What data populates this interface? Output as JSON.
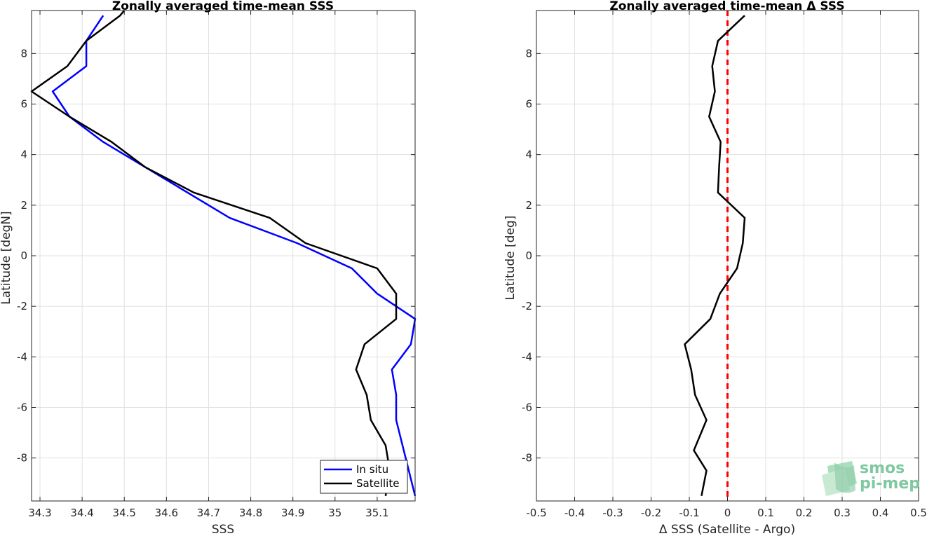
{
  "chart_data": [
    {
      "type": "line",
      "title": "Zonally averaged time-mean SSS",
      "xlabel": "SSS",
      "ylabel": "Latitude [degN]",
      "xlim": [
        34.28,
        35.19
      ],
      "ylim": [
        -9.7,
        9.7
      ],
      "xticks": [
        34.3,
        34.4,
        34.5,
        34.6,
        34.7,
        34.8,
        34.9,
        35.0,
        35.1
      ],
      "xtick_labels": [
        "34.3",
        "34.4",
        "34.5",
        "34.6",
        "34.7",
        "34.8",
        "34.9",
        "35",
        "35.1"
      ],
      "yticks": [
        -8,
        -6,
        -4,
        -2,
        0,
        2,
        4,
        6,
        8
      ],
      "yticks_labels": [
        "-8",
        "-6",
        "-4",
        "-2",
        "0",
        "2",
        "4",
        "6",
        "8"
      ],
      "grid": true,
      "legend_position": "bottom-right",
      "series": [
        {
          "name": "In situ",
          "color": "#0000ff",
          "x": [
            35.19,
            35.175,
            35.16,
            35.145,
            35.145,
            35.135,
            35.18,
            35.19,
            35.1,
            35.04,
            34.91,
            34.75,
            34.55,
            34.45,
            34.37,
            34.33,
            34.41,
            34.41,
            34.45
          ],
          "y": [
            -9.5,
            -8.5,
            -7.5,
            -6.5,
            -5.5,
            -4.5,
            -3.5,
            -2.5,
            -1.5,
            -0.5,
            0.5,
            1.5,
            3.5,
            4.5,
            5.5,
            6.5,
            7.5,
            8.5,
            9.5
          ]
        },
        {
          "name": "Satellite",
          "color": "#000000",
          "x": [
            35.12,
            35.13,
            35.12,
            35.085,
            35.075,
            35.05,
            35.07,
            35.145,
            35.145,
            35.1,
            34.93,
            34.845,
            34.665,
            34.55,
            34.47,
            34.37,
            34.28,
            34.365,
            34.41,
            34.49,
            34.5
          ],
          "y": [
            -9.5,
            -8.5,
            -7.5,
            -6.5,
            -5.5,
            -4.5,
            -3.5,
            -2.5,
            -1.5,
            -0.5,
            0.5,
            1.5,
            2.5,
            3.5,
            4.5,
            5.5,
            6.5,
            7.5,
            8.5,
            9.5,
            9.7
          ]
        }
      ]
    },
    {
      "type": "line",
      "title": "Zonally averaged time-mean Δ SSS",
      "xlabel": "Δ SSS (Satellite - Argo)",
      "ylabel": "Latitude [deg]",
      "xlim": [
        -0.5,
        0.5
      ],
      "ylim": [
        -9.7,
        9.7
      ],
      "xticks": [
        -0.5,
        -0.4,
        -0.3,
        -0.2,
        -0.1,
        0,
        0.1,
        0.2,
        0.3,
        0.4,
        0.5
      ],
      "xtick_labels": [
        "-0.5",
        "-0.4",
        "-0.3",
        "-0.2",
        "-0.1",
        "0",
        "0.1",
        "0.2",
        "0.3",
        "0.4",
        "0.5"
      ],
      "yticks": [
        -8,
        -6,
        -4,
        -2,
        0,
        2,
        4,
        6,
        8
      ],
      "yticks_labels": [
        "-8",
        "-6",
        "-4",
        "-2",
        "0",
        "2",
        "4",
        "6",
        "8"
      ],
      "grid": true,
      "reference_line": {
        "x": 0,
        "color": "#ff0000",
        "style": "dashed"
      },
      "series": [
        {
          "color": "#000000",
          "x": [
            -0.068,
            -0.055,
            -0.088,
            -0.055,
            -0.085,
            -0.095,
            -0.112,
            -0.045,
            -0.02,
            0.025,
            0.04,
            0.045,
            -0.025,
            -0.022,
            -0.018,
            -0.048,
            -0.033,
            -0.04,
            -0.025,
            0.045
          ],
          "y": [
            -9.5,
            -8.5,
            -7.7,
            -6.5,
            -5.5,
            -4.5,
            -3.5,
            -2.5,
            -1.5,
            -0.5,
            0.5,
            1.5,
            2.5,
            3.5,
            4.5,
            5.5,
            6.5,
            7.5,
            8.5,
            9.5
          ]
        }
      ]
    }
  ],
  "legend": {
    "items": [
      "In situ",
      "Satellite"
    ]
  },
  "logo": {
    "line1": "smos",
    "line2": "pi-mep"
  }
}
